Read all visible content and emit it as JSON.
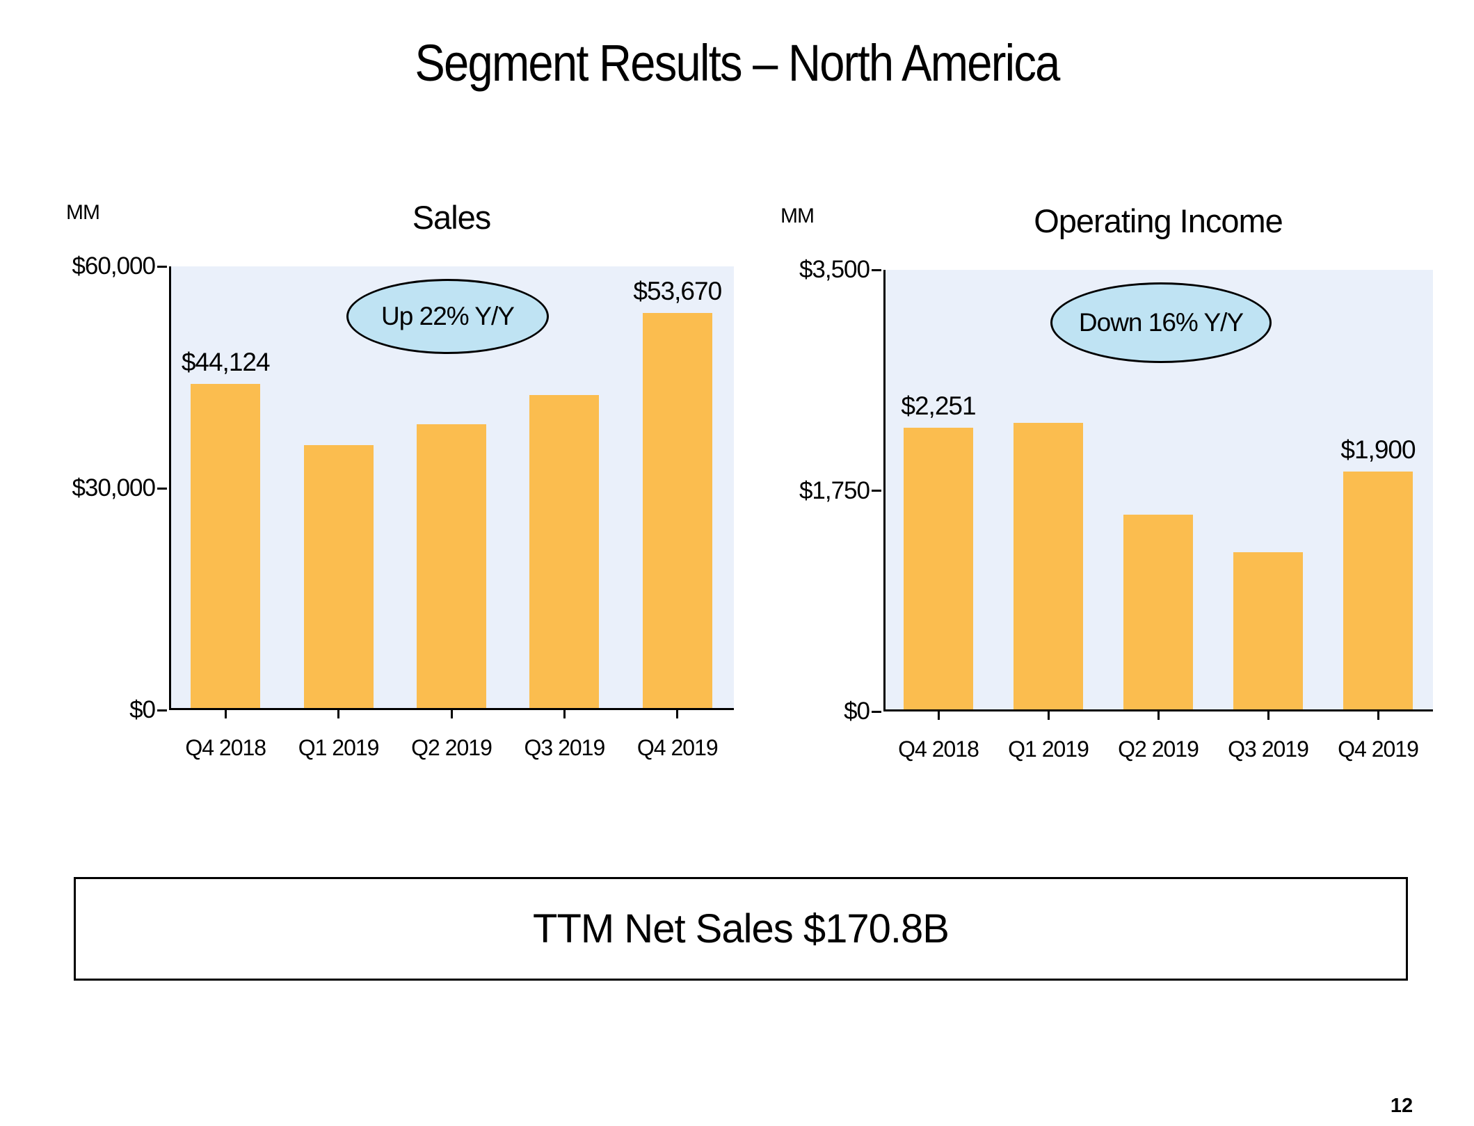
{
  "page": {
    "title": "Segment Results – North America",
    "footer_box": "TTM Net Sales $170.8B",
    "page_number": "12"
  },
  "colors": {
    "bar": "#FBBD4F",
    "plot_background": "#EAF0FA",
    "callout_fill": "#BFE3F3",
    "axis": "#000000"
  },
  "chart_data": [
    {
      "type": "bar",
      "title": "Sales",
      "unit_label": "MM",
      "categories": [
        "Q4 2018",
        "Q1 2019",
        "Q2 2019",
        "Q3 2019",
        "Q4 2019"
      ],
      "values": [
        44124,
        35812,
        38653,
        42638,
        53670
      ],
      "ylim": [
        0,
        60000
      ],
      "ytick_values": [
        60000,
        30000,
        0
      ],
      "ytick_labels": [
        "$60,000",
        "$30,000",
        "$0"
      ],
      "bar_labels": {
        "0": "$44,124",
        "4": "$53,670"
      },
      "annotation": "Up 22% Y/Y",
      "grid": "off",
      "legend": "none"
    },
    {
      "type": "bar",
      "title": "Operating Income",
      "unit_label": "MM",
      "categories": [
        "Q4 2018",
        "Q1 2019",
        "Q2 2019",
        "Q3 2019",
        "Q4 2019"
      ],
      "values": [
        2251,
        2287,
        1559,
        1262,
        1900
      ],
      "ylim": [
        0,
        3500
      ],
      "ytick_values": [
        3500,
        1750,
        0
      ],
      "ytick_labels": [
        "$3,500",
        "$1,750",
        "$0"
      ],
      "bar_labels": {
        "0": "$2,251",
        "4": "$1,900"
      },
      "annotation": "Down 16% Y/Y",
      "grid": "off",
      "legend": "none"
    }
  ]
}
